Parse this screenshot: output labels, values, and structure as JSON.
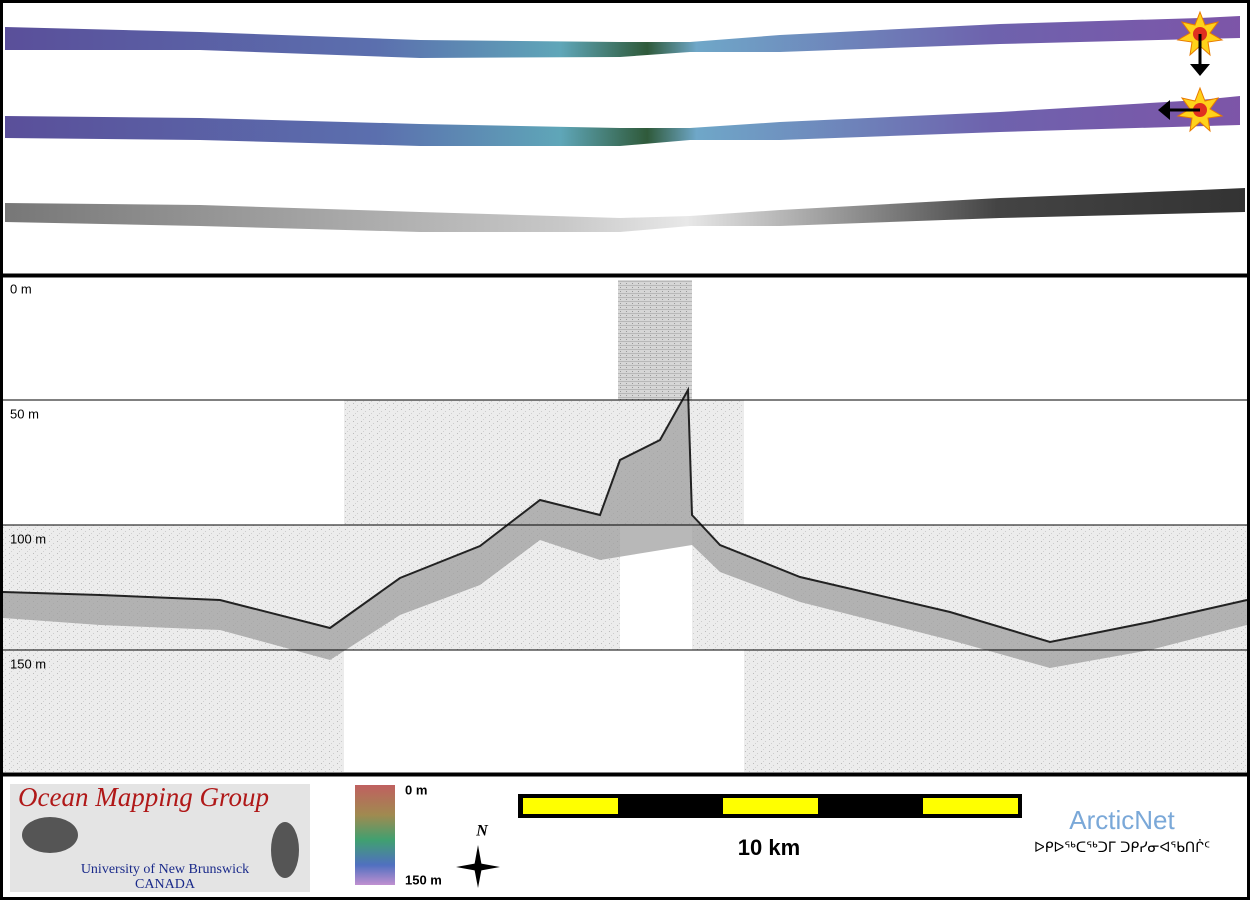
{
  "profile": {
    "depth_labels": [
      "0 m",
      "50 m",
      "100 m",
      "150 m"
    ]
  },
  "logo": {
    "title": "Ocean Mapping Group",
    "subtitle": "University of New Brunswick",
    "country": "CANADA"
  },
  "colorbar": {
    "top_label": "0 m",
    "bottom_label": "150 m"
  },
  "north_arrow": {
    "label": "N"
  },
  "scale_bar": {
    "label": "10 km"
  },
  "partner": {
    "name": "ArcticNet",
    "syllabics": "ᐅᑭᐅᖅᑕᖅᑐᒥ ᑐᑭᓯᓂᐊᖃᑎᒌᑦ"
  }
}
